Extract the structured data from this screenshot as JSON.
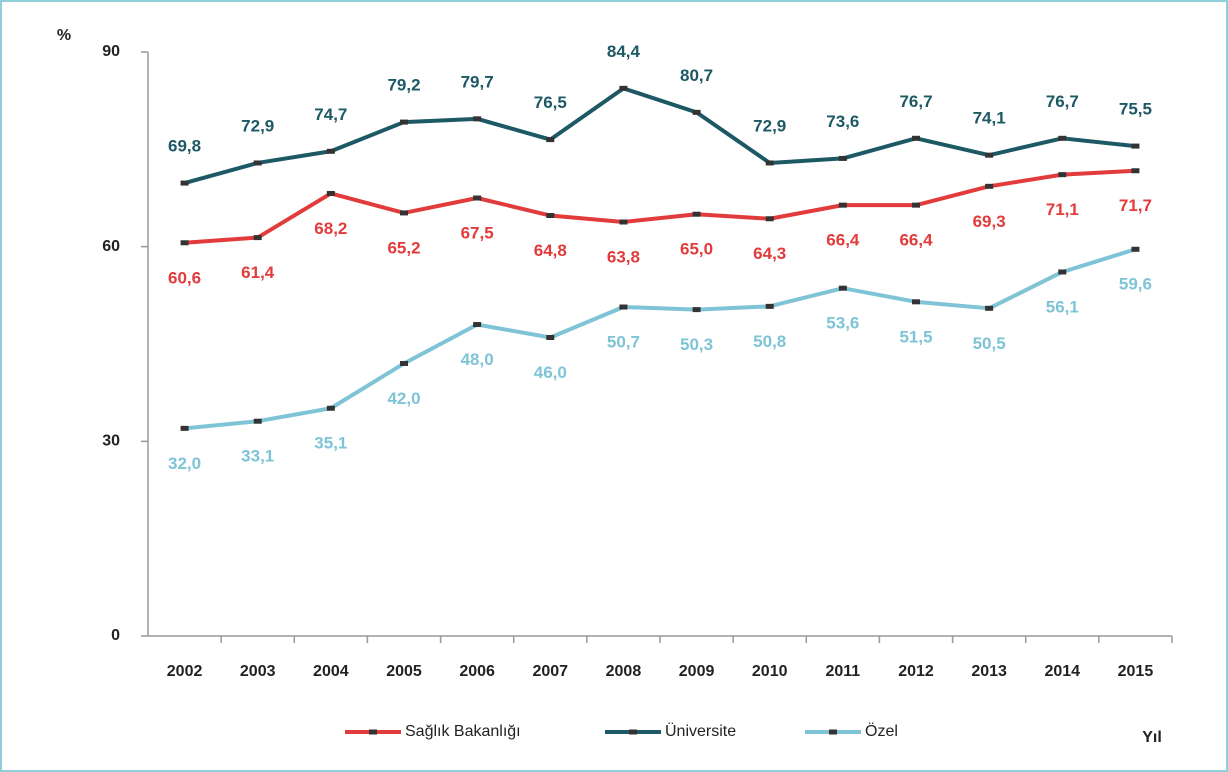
{
  "chart_data": {
    "type": "line",
    "y_label": "%",
    "x_label": "Yıl",
    "categories": [
      "2002",
      "2003",
      "2004",
      "2005",
      "2006",
      "2007",
      "2008",
      "2009",
      "2010",
      "2011",
      "2012",
      "2013",
      "2014",
      "2015"
    ],
    "series": [
      {
        "name": "Sağlık Bakanlığı",
        "color": "#e23b3b",
        "label_position": "below",
        "values": [
          60.6,
          61.4,
          68.2,
          65.2,
          67.5,
          64.8,
          63.8,
          65.0,
          64.3,
          66.4,
          66.4,
          69.3,
          71.1,
          71.7
        ],
        "value_labels": [
          "60,6",
          "61,4",
          "68,2",
          "65,2",
          "67,5",
          "64,8",
          "63,8",
          "65,0",
          "64,3",
          "66,4",
          "66,4",
          "69,3",
          "71,1",
          "71,7"
        ]
      },
      {
        "name": "Üniversite",
        "color": "#1d5865",
        "label_position": "above",
        "values": [
          69.8,
          72.9,
          74.7,
          79.2,
          79.7,
          76.5,
          84.4,
          80.7,
          72.9,
          73.6,
          76.7,
          74.1,
          76.7,
          75.5
        ],
        "value_labels": [
          "69,8",
          "72,9",
          "74,7",
          "79,2",
          "79,7",
          "76,5",
          "84,4",
          "80,7",
          "72,9",
          "73,6",
          "76,7",
          "74,1",
          "76,7",
          "75,5"
        ]
      },
      {
        "name": "Özel",
        "color": "#7ec4d6",
        "label_position": "below",
        "values": [
          32.0,
          33.1,
          35.1,
          42.0,
          48.0,
          46.0,
          50.7,
          50.3,
          50.8,
          53.6,
          51.5,
          50.5,
          56.1,
          59.6
        ],
        "value_labels": [
          "32,0",
          "33,1",
          "35,1",
          "42,0",
          "48,0",
          "46,0",
          "50,7",
          "50,3",
          "50,8",
          "53,6",
          "51,5",
          "50,5",
          "56,1",
          "59,6"
        ]
      }
    ],
    "ylim": [
      0,
      90
    ],
    "yticks": [
      0,
      30,
      60,
      90
    ],
    "grid": false,
    "legend": "bottom"
  }
}
